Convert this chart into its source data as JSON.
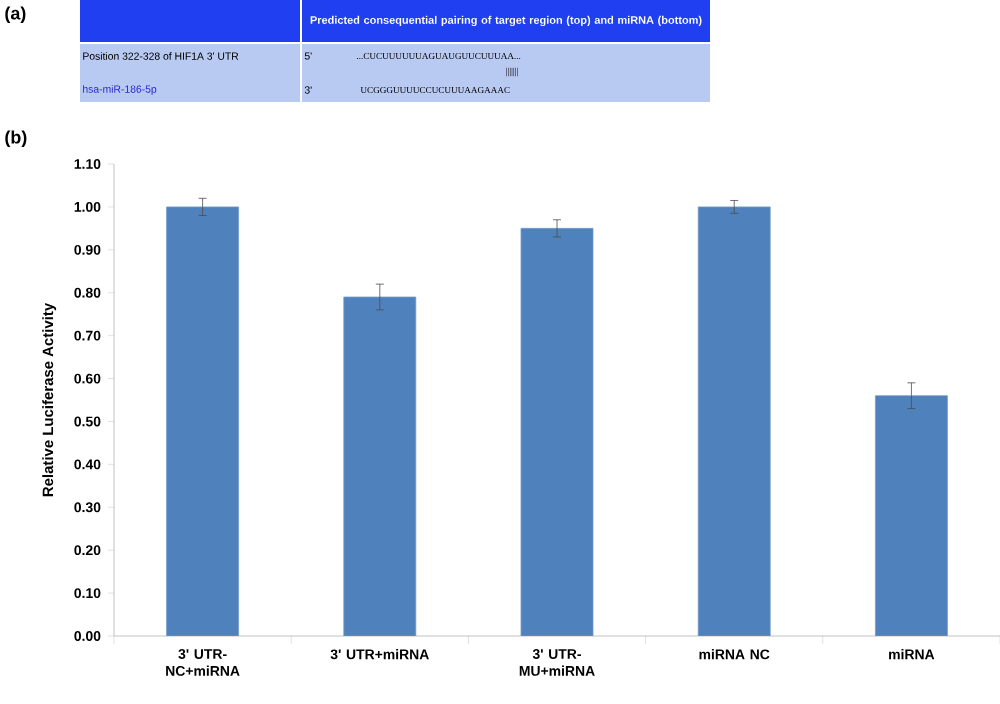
{
  "chart_data": [
    {
      "type": "other",
      "title": "(a)",
      "subtitle": "Predicted consequential pairing of target region (top) and miRNA (bottom)",
      "annotations": [
        "Position 322-328 of HIF1A 3' UTR",
        "5'",
        "...CUCUUUUUUAGUAUGUUCUUUAA...",
        "|||||||",
        "hsa-miR-186-5p",
        "3'",
        "UCGGGUUUUCCUCUUUAAGAAAC"
      ]
    },
    {
      "type": "bar",
      "title": "(b)",
      "ylabel": "Relative Luciferase Activity",
      "categories": [
        "3' UTR-NC+miRNA",
        "3' UTR+miRNA",
        "3' UTR-MU+miRNA",
        "miRNA NC",
        "miRNA"
      ],
      "values": [
        1.0,
        0.79,
        0.95,
        1.0,
        0.56
      ],
      "errors": [
        0.02,
        0.03,
        0.02,
        0.015,
        0.03
      ],
      "color": "#4f81bd",
      "ylim": [
        0,
        1.1
      ],
      "yticks": [
        {
          "value": 0,
          "label": "0.00"
        },
        {
          "value": 0.1,
          "label": "0.10"
        },
        {
          "value": 0.2,
          "label": "0.20"
        },
        {
          "value": 0.3,
          "label": "0.30"
        },
        {
          "value": 0.4,
          "label": "0.40"
        },
        {
          "value": 0.5,
          "label": "0.50"
        },
        {
          "value": 0.6,
          "label": "0.60"
        },
        {
          "value": 0.7,
          "label": "0.70"
        },
        {
          "value": 0.8,
          "label": "0.80"
        },
        {
          "value": 0.9,
          "label": "0.90"
        },
        {
          "value": 1.0,
          "label": "1.00"
        },
        {
          "value": 1.1,
          "label": "1.10"
        }
      ]
    }
  ]
}
